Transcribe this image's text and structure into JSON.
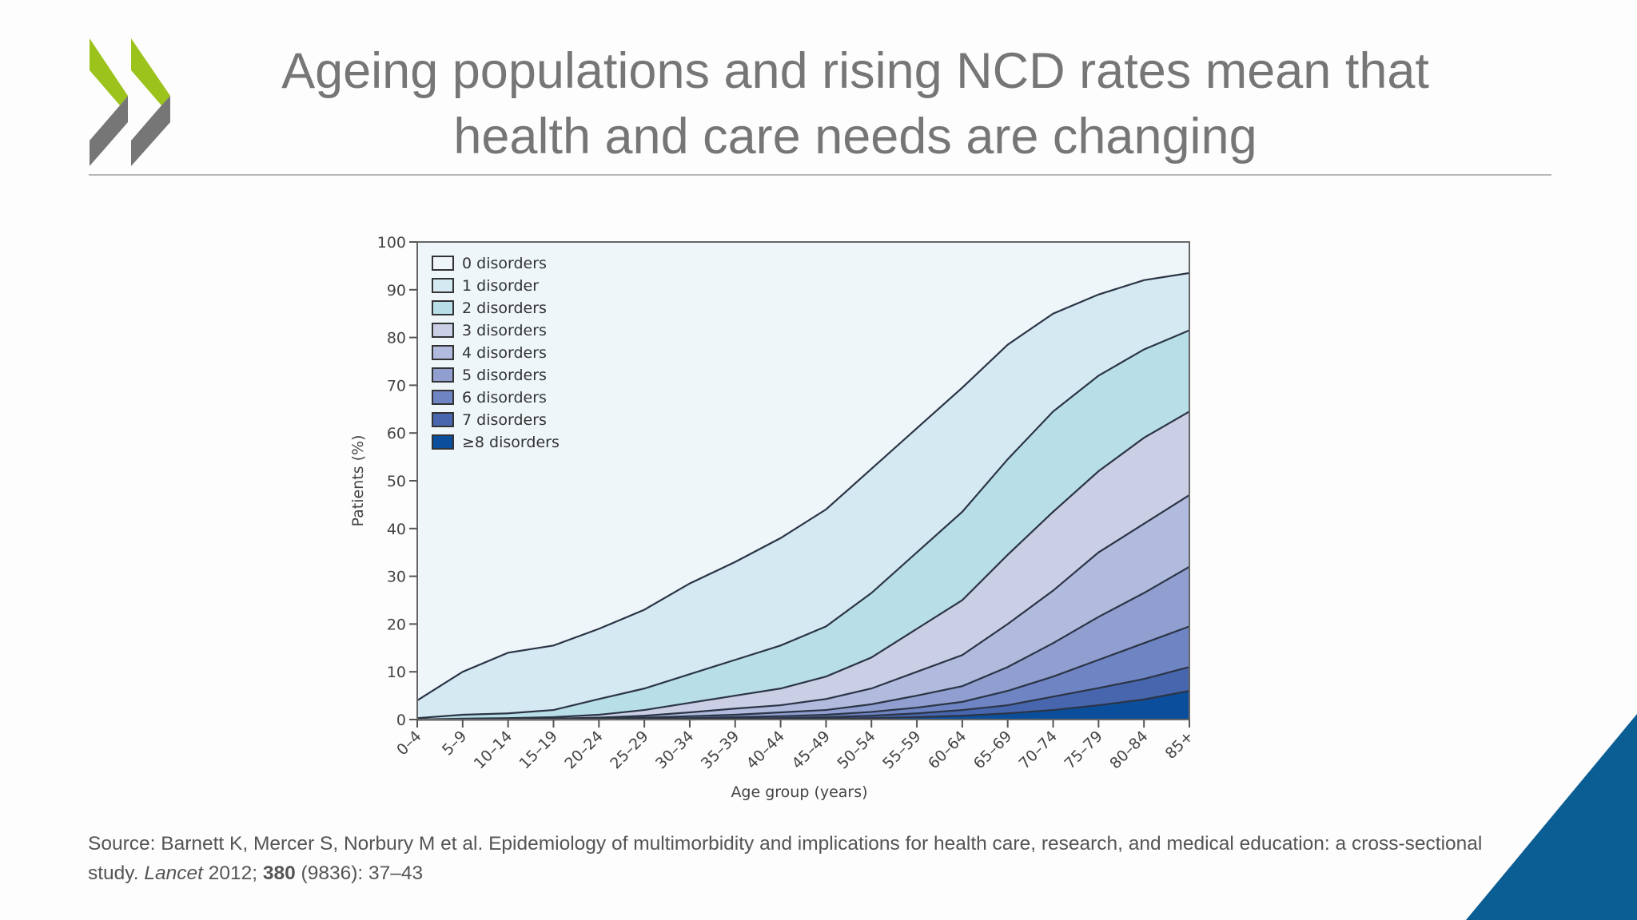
{
  "slide": {
    "title_line1": "Ageing populations and rising NCD rates mean that",
    "title_line2": "health and care needs are changing",
    "source": {
      "prefix": "Source: Barnett K, Mercer S, Norbury M et al. Epidemiology of multimorbidity and implications for health care, research, and medical education: a cross-sectional study. ",
      "journal": "Lancet",
      "year": " 2012; ",
      "volume": "380",
      "issue_pages": " (9836): 37–43"
    },
    "colors": {
      "title": "#767676",
      "logo_green": "#9bc31c",
      "logo_grey": "#767676",
      "corner": "#0b5e94"
    }
  },
  "chart_data": {
    "type": "area",
    "stacked": true,
    "xlabel": "Age group (years)",
    "ylabel": "Patients (%)",
    "ylim": [
      0,
      100
    ],
    "yticks": [
      0,
      10,
      20,
      30,
      40,
      50,
      60,
      70,
      80,
      90,
      100
    ],
    "grid": false,
    "legend_position": "top-left",
    "categories": [
      "0–4",
      "5–9",
      "10–14",
      "15–19",
      "20–24",
      "25–29",
      "30–34",
      "35–39",
      "40–44",
      "45–49",
      "50–54",
      "55–59",
      "60–64",
      "65–69",
      "70–74",
      "75–79",
      "80–84",
      "85+"
    ],
    "series": [
      {
        "name": "0 disorders",
        "color": "#eef6fa",
        "values": [
          96,
          90,
          86,
          84.5,
          81,
          77,
          71.5,
          67,
          62,
          56,
          47.5,
          39,
          30.5,
          21.5,
          15,
          11,
          8,
          6.5
        ]
      },
      {
        "name": "1 disorder",
        "color": "#d5e9f2",
        "values": [
          3.7,
          9,
          12.7,
          13.5,
          14.7,
          16.5,
          19,
          20.5,
          22.5,
          24.5,
          26,
          26,
          26,
          24,
          20.5,
          17,
          14.5,
          12
        ]
      },
      {
        "name": "2 disorders",
        "color": "#b8dfe8",
        "values": [
          0.3,
          0.8,
          1,
          1.5,
          3.3,
          4.5,
          6,
          7.5,
          9,
          10.5,
          13.5,
          16,
          18.5,
          20,
          21,
          20,
          18.5,
          17
        ]
      },
      {
        "name": "3 disorders",
        "color": "#cbcfe6",
        "values": [
          0,
          0.2,
          0.2,
          0.3,
          0.6,
          1.2,
          2,
          2.7,
          3.5,
          4.7,
          6.5,
          9,
          11.5,
          14.5,
          16.5,
          17,
          18,
          17.5
        ]
      },
      {
        "name": "4 disorders",
        "color": "#b1bbdd",
        "values": [
          0,
          0,
          0.1,
          0.2,
          0.2,
          0.4,
          0.8,
          1.3,
          1.5,
          2.3,
          3.3,
          5,
          6.5,
          9,
          11,
          13.5,
          14.5,
          15
        ]
      },
      {
        "name": "5 disorders",
        "color": "#909fd0",
        "values": [
          0,
          0,
          0,
          0,
          0.1,
          0.2,
          0.4,
          0.5,
          0.8,
          1,
          1.6,
          2.5,
          3.3,
          5,
          7,
          9,
          10.5,
          12.5
        ]
      },
      {
        "name": "6 disorders",
        "color": "#6f84c3",
        "values": [
          0,
          0,
          0,
          0,
          0.1,
          0.1,
          0.2,
          0.3,
          0.4,
          0.5,
          0.8,
          1.2,
          1.7,
          3,
          4.2,
          5.9,
          7.5,
          8.5
        ]
      },
      {
        "name": "7 disorders",
        "color": "#4766ad",
        "values": [
          0,
          0,
          0,
          0,
          0,
          0.1,
          0.1,
          0.1,
          0.2,
          0.3,
          0.5,
          0.8,
          1.2,
          1.7,
          2.8,
          3.6,
          4.3,
          5
        ]
      },
      {
        "name": "≥8 disorders",
        "color": "#0b4f9c",
        "values": [
          0,
          0,
          0,
          0,
          0,
          0,
          0,
          0.1,
          0.1,
          0.2,
          0.3,
          0.5,
          0.8,
          1.3,
          2,
          3,
          4.2,
          6
        ]
      }
    ]
  }
}
